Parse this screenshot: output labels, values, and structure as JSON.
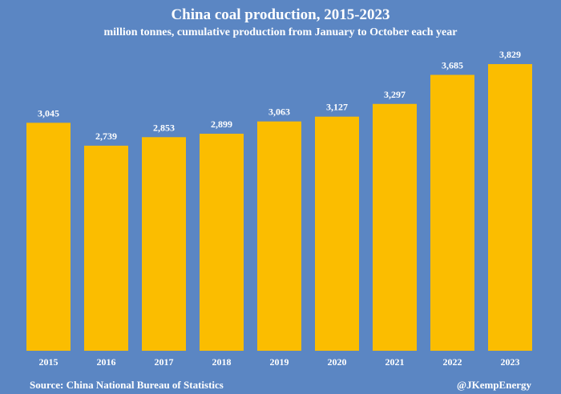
{
  "chart_data": {
    "type": "bar",
    "title": "China coal production, 2015-2023",
    "subtitle": "million tonnes, cumulative production from January to October each year",
    "categories": [
      "2015",
      "2016",
      "2017",
      "2018",
      "2019",
      "2020",
      "2021",
      "2022",
      "2023"
    ],
    "values": [
      3045,
      2739,
      2853,
      2899,
      3063,
      3127,
      3297,
      3685,
      3829
    ],
    "value_labels": [
      "3,045",
      "2,739",
      "2,853",
      "2,899",
      "3,063",
      "3,127",
      "3,297",
      "3,685",
      "3,829"
    ],
    "ylim": [
      0,
      4300
    ],
    "xlabel": "",
    "ylabel": "",
    "grid": false,
    "legend": "none",
    "colors": {
      "background": "#5b86c3",
      "bar": "#fbbd00",
      "text": "#ffffff"
    }
  },
  "footer": {
    "source": "Source: China National Bureau of Statistics",
    "credit": "@JKempEnergy"
  }
}
